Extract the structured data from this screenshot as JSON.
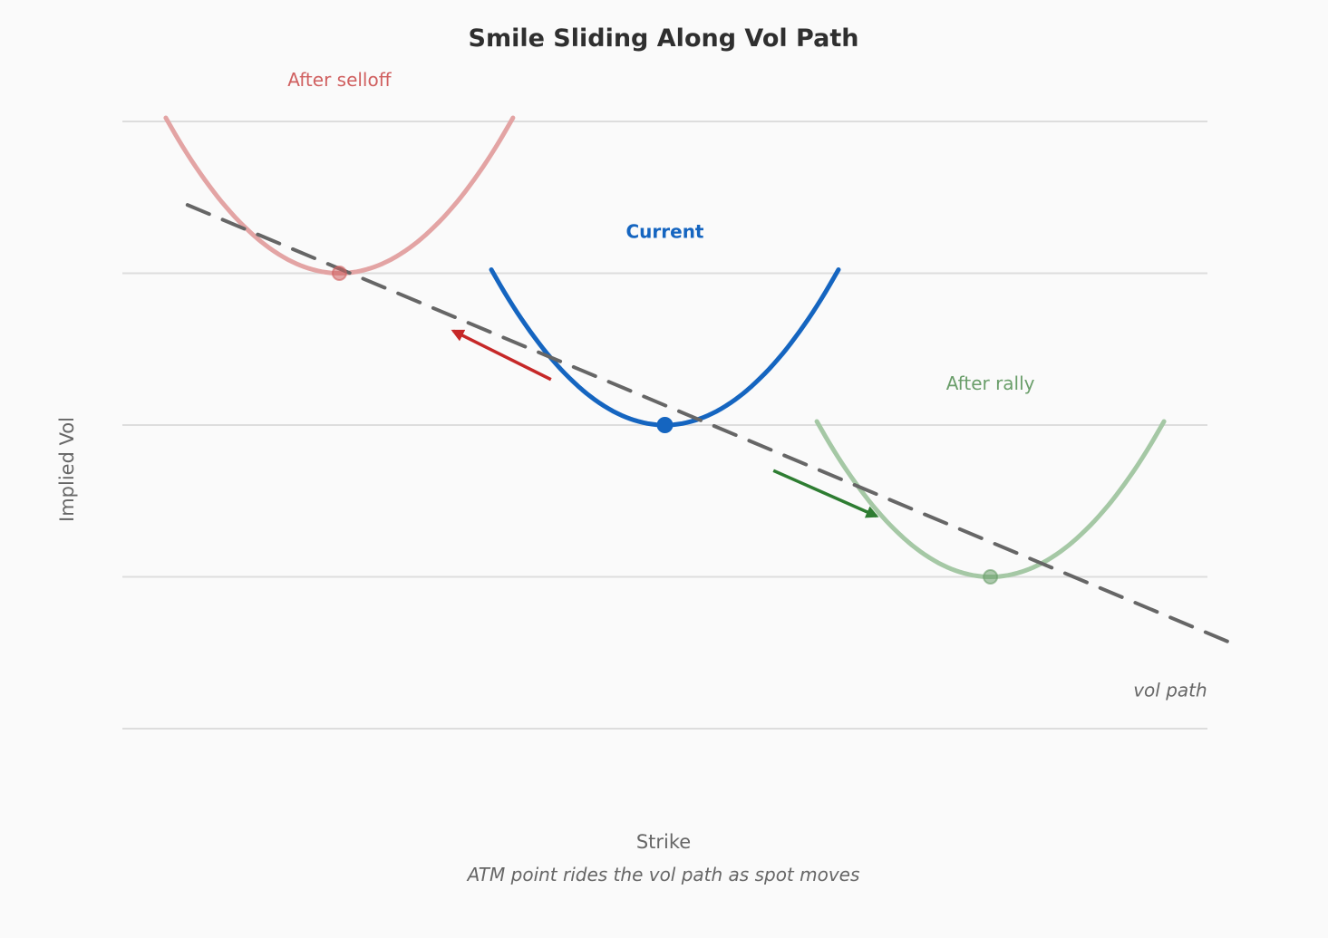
{
  "chart_data": {
    "type": "line",
    "title": "Smile Sliding Along Vol Path",
    "xlabel": "Strike",
    "ylabel": "Implied Vol",
    "caption": "ATM point rides the vol path as spot moves",
    "xlim": [
      0,
      10
    ],
    "ylim": [
      0,
      4
    ],
    "grid": "horizontal",
    "gridlines_y": [
      0,
      1,
      2,
      3,
      4
    ],
    "tick_labels_shown": false,
    "series": [
      {
        "name": "After selloff",
        "color": "#e3a4a4",
        "label_color": "#d06060",
        "atm": [
          2.0,
          3.0
        ],
        "x_range": [
          0.4,
          3.6
        ],
        "curvature": 0.4
      },
      {
        "name": "Current",
        "color": "#1565c0",
        "label_color": "#1565c0",
        "atm": [
          5.0,
          2.0
        ],
        "x_range": [
          3.4,
          6.6
        ],
        "curvature": 0.4
      },
      {
        "name": "After rally",
        "color": "#a5c8a5",
        "label_color": "#6a9e6a",
        "atm": [
          8.0,
          1.0
        ],
        "x_range": [
          6.4,
          9.6
        ],
        "curvature": 0.4
      }
    ],
    "vol_path": {
      "label": "vol path",
      "color": "#666666",
      "start": [
        0.6,
        3.45
      ],
      "end": [
        10.2,
        0.57
      ]
    },
    "arrows": [
      {
        "color": "#c62828",
        "from": [
          3.95,
          2.3
        ],
        "to": [
          3.05,
          2.62
        ]
      },
      {
        "color": "#2e7d32",
        "from": [
          6.0,
          1.7
        ],
        "to": [
          6.95,
          1.4
        ]
      }
    ]
  }
}
